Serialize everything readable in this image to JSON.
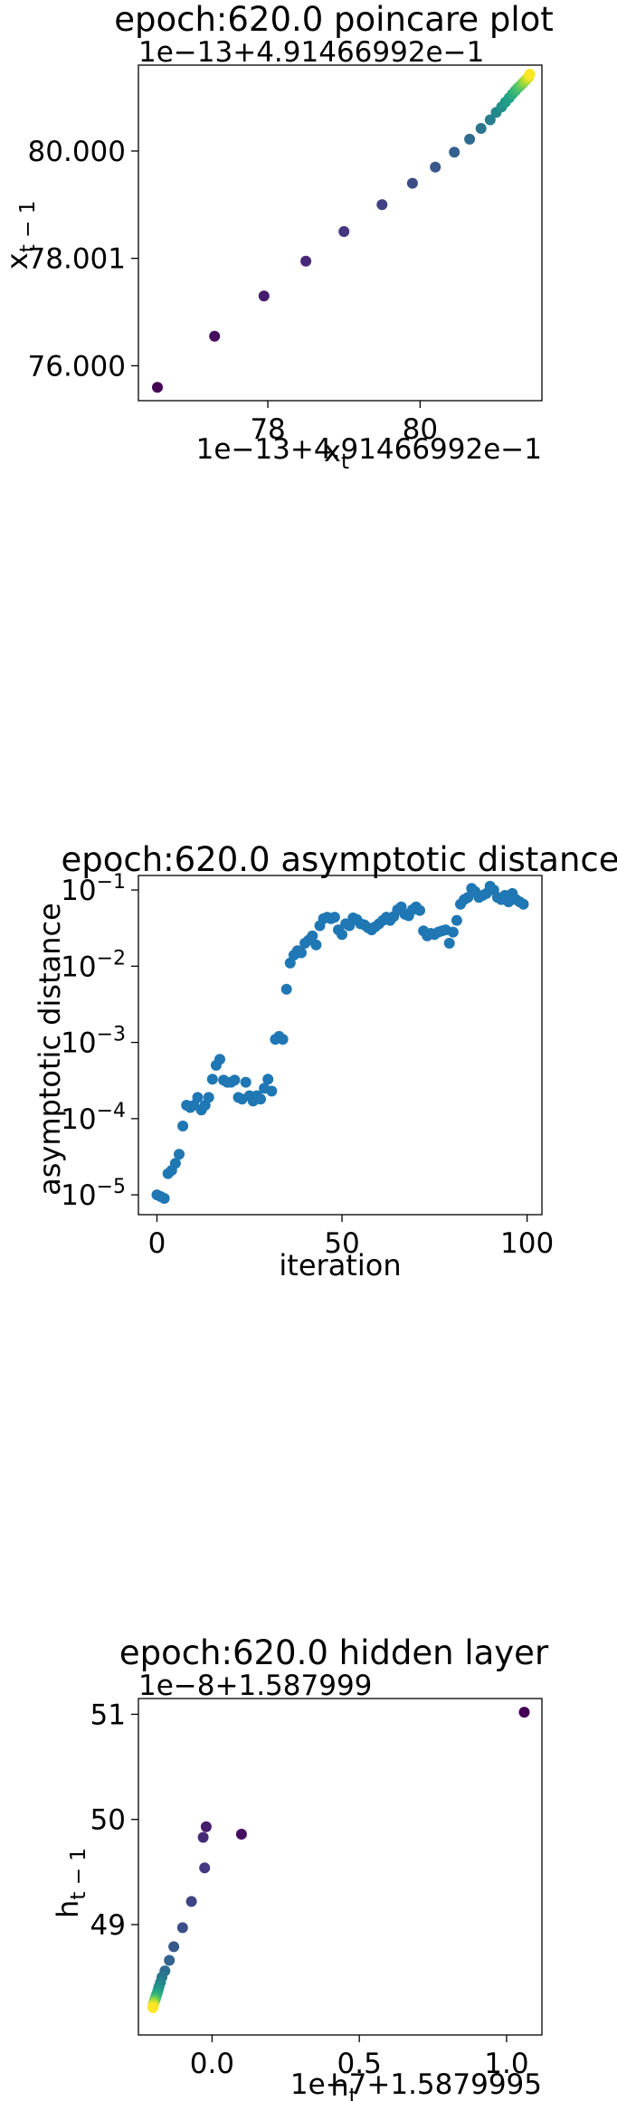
{
  "chart_data": [
    {
      "type": "scatter",
      "title": "epoch:620.0 poincare plot",
      "offset_y": "1e−13+4.91466992e−1",
      "offset_x": "1e−13+4.91466992e−1",
      "xlabel": "x_t",
      "ylabel": "x_{t−1}",
      "xlim": [
        76.3,
        81.6
      ],
      "ylim": [
        75.35,
        81.6
      ],
      "xticks": [
        {
          "v": 78,
          "label": "78"
        },
        {
          "v": 80,
          "label": "80"
        }
      ],
      "yticks": [
        {
          "v": 76.0,
          "label": "76.000"
        },
        {
          "v": 78.001,
          "label": "78.001"
        },
        {
          "v": 80.0,
          "label": "80.000"
        }
      ],
      "colormap": [
        "#440154",
        "#46337e",
        "#365c8d",
        "#277f8e",
        "#1fa187",
        "#4ac16d",
        "#a0da39",
        "#fde725"
      ],
      "points": {
        "x": [
          76.55,
          77.3,
          77.95,
          78.5,
          79.0,
          79.5,
          79.9,
          80.2,
          80.45,
          80.65,
          80.8,
          80.92,
          81.0,
          81.07,
          81.12,
          81.17,
          81.21,
          81.25,
          81.28,
          81.31,
          81.34,
          81.36,
          81.38,
          81.4,
          81.42,
          81.43,
          81.44
        ],
        "y": [
          75.6,
          76.55,
          77.3,
          77.95,
          78.5,
          79.0,
          79.4,
          79.7,
          79.98,
          80.22,
          80.42,
          80.58,
          80.72,
          80.82,
          80.91,
          80.99,
          81.06,
          81.12,
          81.17,
          81.21,
          81.25,
          81.28,
          81.31,
          81.34,
          81.37,
          81.4,
          81.43
        ]
      }
    },
    {
      "type": "scatter",
      "title": "epoch:620.0 asymptotic distance",
      "xlabel": "iteration",
      "ylabel": "asymptotic distance",
      "yscale": "log",
      "xlim": [
        -5,
        104
      ],
      "ylim": [
        5.5e-06,
        0.155
      ],
      "xticks": [
        {
          "v": 0,
          "label": "0"
        },
        {
          "v": 50,
          "label": "50"
        },
        {
          "v": 100,
          "label": "100"
        }
      ],
      "yticks": [
        {
          "v": 1e-05,
          "base": "10",
          "exp": "−5"
        },
        {
          "v": 0.0001,
          "base": "10",
          "exp": "−4"
        },
        {
          "v": 0.001,
          "base": "10",
          "exp": "−3"
        },
        {
          "v": 0.01,
          "base": "10",
          "exp": "−2"
        },
        {
          "v": 0.1,
          "base": "10",
          "exp": "−1"
        }
      ],
      "color": "#1f77b4",
      "x": [
        0,
        1,
        2,
        3,
        4,
        5,
        6,
        7,
        8,
        9,
        10,
        11,
        12,
        13,
        14,
        15,
        16,
        17,
        18,
        19,
        20,
        21,
        22,
        23,
        24,
        25,
        26,
        27,
        28,
        29,
        30,
        31,
        32,
        33,
        34,
        35,
        36,
        37,
        38,
        39,
        40,
        41,
        42,
        43,
        44,
        45,
        46,
        47,
        48,
        49,
        50,
        51,
        52,
        53,
        54,
        55,
        56,
        57,
        58,
        59,
        60,
        61,
        62,
        63,
        64,
        65,
        66,
        67,
        68,
        69,
        70,
        71,
        72,
        73,
        74,
        75,
        76,
        77,
        78,
        79,
        80,
        81,
        82,
        83,
        84,
        85,
        86,
        87,
        88,
        89,
        90,
        91,
        92,
        93,
        94,
        95,
        96,
        97,
        98,
        99
      ],
      "y": [
        1e-05,
        9.5e-06,
        9e-06,
        1.9e-05,
        2.1e-05,
        2.6e-05,
        3.4e-05,
        8e-05,
        0.00015,
        0.00014,
        0.00015,
        0.00019,
        0.00013,
        0.00015,
        0.00019,
        0.00033,
        0.0005,
        0.0006,
        0.00032,
        0.0003,
        0.0003,
        0.00032,
        0.00019,
        0.00018,
        0.0003,
        0.0002,
        0.00017,
        0.0002,
        0.00018,
        0.00025,
        0.00033,
        0.00023,
        0.0011,
        0.0012,
        0.0011,
        0.005,
        0.011,
        0.014,
        0.016,
        0.015,
        0.02,
        0.022,
        0.025,
        0.019,
        0.034,
        0.042,
        0.044,
        0.042,
        0.044,
        0.03,
        0.026,
        0.036,
        0.034,
        0.043,
        0.041,
        0.036,
        0.035,
        0.032,
        0.03,
        0.033,
        0.036,
        0.04,
        0.044,
        0.04,
        0.045,
        0.055,
        0.06,
        0.048,
        0.046,
        0.055,
        0.06,
        0.054,
        0.029,
        0.025,
        0.027,
        0.026,
        0.028,
        0.029,
        0.03,
        0.02,
        0.028,
        0.04,
        0.065,
        0.075,
        0.08,
        0.105,
        0.095,
        0.08,
        0.085,
        0.09,
        0.112,
        0.1,
        0.08,
        0.075,
        0.085,
        0.07,
        0.09,
        0.075,
        0.07,
        0.065
      ]
    },
    {
      "type": "scatter",
      "title": "epoch:620.0 hidden layer",
      "offset_y": "1e−8+1.587999",
      "offset_x": "1e−7+1.5879995",
      "xlabel": "h_t",
      "ylabel": "h_{t−1}",
      "xlim": [
        -0.25,
        1.12
      ],
      "ylim": [
        47.95,
        51.15
      ],
      "xticks": [
        {
          "v": 0.0,
          "label": "0.0"
        },
        {
          "v": 0.5,
          "label": "0.5"
        },
        {
          "v": 1.0,
          "label": "1.0"
        }
      ],
      "yticks": [
        {
          "v": 49,
          "label": "49"
        },
        {
          "v": 50,
          "label": "50"
        },
        {
          "v": 51,
          "label": "51"
        }
      ],
      "colormap": [
        "#440154",
        "#46337e",
        "#365c8d",
        "#277f8e",
        "#1fa187",
        "#4ac16d",
        "#a0da39",
        "#fde725"
      ],
      "points": {
        "x": [
          1.06,
          0.1,
          -0.02,
          -0.03,
          -0.025,
          -0.07,
          -0.1,
          -0.13,
          -0.145,
          -0.16,
          -0.17,
          -0.175,
          -0.18,
          -0.183,
          -0.186,
          -0.189,
          -0.191,
          -0.193,
          -0.195,
          -0.196,
          -0.197,
          -0.198,
          -0.199,
          -0.2,
          -0.2,
          -0.201
        ],
        "y": [
          51.02,
          49.86,
          49.93,
          49.83,
          49.54,
          49.22,
          48.97,
          48.79,
          48.66,
          48.56,
          48.5,
          48.45,
          48.41,
          48.38,
          48.35,
          48.33,
          48.31,
          48.29,
          48.28,
          48.27,
          48.26,
          48.25,
          48.24,
          48.23,
          48.22,
          48.21
        ]
      }
    }
  ]
}
